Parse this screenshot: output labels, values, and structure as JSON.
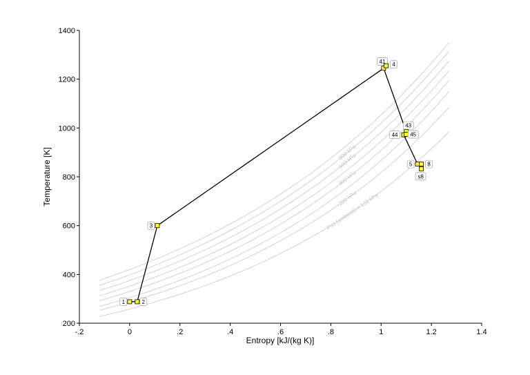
{
  "chart_data": {
    "type": "line",
    "title": "",
    "xlabel": "Entropy [kJ/(kg K)]",
    "ylabel": "Temperature [K]",
    "xlim": [
      -0.2,
      1.4
    ],
    "ylim": [
      200,
      1400
    ],
    "x_ticks": [
      -0.2,
      0,
      0.2,
      0.4,
      0.6,
      0.8,
      1,
      1.2,
      1.4
    ],
    "x_tick_labels": [
      "-.2",
      "0",
      ".2",
      ".4",
      ".6",
      ".8",
      "1",
      "1.2",
      "1.4"
    ],
    "y_ticks": [
      200,
      400,
      600,
      800,
      1000,
      1200,
      1400
    ],
    "y_tick_labels": [
      "200",
      "400",
      "600",
      "800",
      "1000",
      "1200",
      "1400"
    ],
    "grid": false,
    "isobar_color": "#d2d2d2",
    "cycle_color": "#000000",
    "marker_color": "#ffff33",
    "isobars": [
      {
        "label": "",
        "t_at_zero": 420,
        "t_at_end": 1350
      },
      {
        "label": "800 kPa",
        "t_at_zero": 398,
        "t_at_end": 1315
      },
      {
        "label": "600 kPa",
        "t_at_zero": 375,
        "t_at_end": 1275
      },
      {
        "label": "",
        "t_at_zero": 352,
        "t_at_end": 1235
      },
      {
        "label": "400 kPa",
        "t_at_zero": 330,
        "t_at_end": 1195
      },
      {
        "label": "",
        "t_at_zero": 305,
        "t_at_end": 1150
      },
      {
        "label": "200 kPa",
        "t_at_zero": 287,
        "t_at_end": 1085
      },
      {
        "label": "Pso (ambient) = 101 kPa",
        "t_at_zero": 258,
        "t_at_end": 985
      }
    ],
    "points": [
      {
        "label": "1",
        "x": 0.0,
        "y": 288
      },
      {
        "label": "2",
        "x": 0.03,
        "y": 288
      },
      {
        "label": "3",
        "x": 0.11,
        "y": 600
      },
      {
        "label": "41",
        "x": 1.01,
        "y": 1245
      },
      {
        "label": "4",
        "x": 1.02,
        "y": 1255
      },
      {
        "label": "43",
        "x": 1.1,
        "y": 985
      },
      {
        "label": "44",
        "x": 1.09,
        "y": 972
      },
      {
        "label": "45",
        "x": 1.1,
        "y": 974
      },
      {
        "label": "5",
        "x": 1.145,
        "y": 852
      },
      {
        "label": "8",
        "x": 1.16,
        "y": 852
      },
      {
        "label": "s8",
        "x": 1.16,
        "y": 833
      }
    ],
    "cycle_path": [
      "1",
      "2",
      "3",
      "41",
      "43",
      "44",
      "5",
      "8",
      "s8"
    ]
  }
}
